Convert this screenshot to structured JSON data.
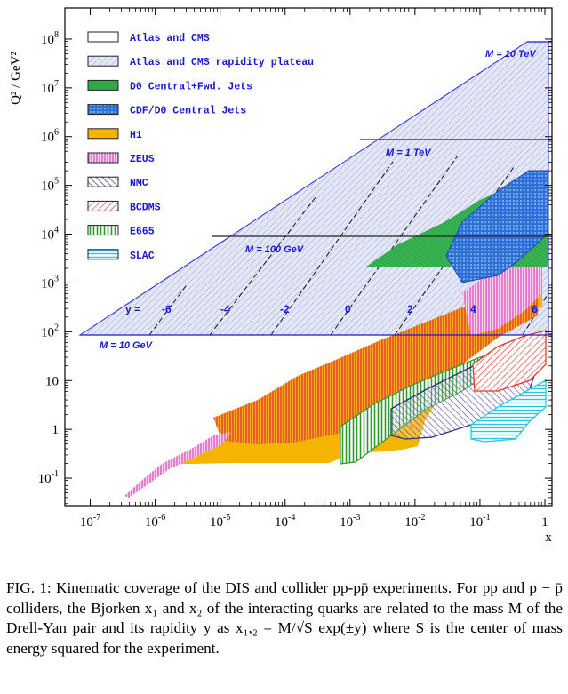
{
  "figure": {
    "y_axis_label": "Q² / GeV²",
    "x_axis_label": "x",
    "x_ticks": [
      {
        "base": "10",
        "exp": "-7",
        "v": -7
      },
      {
        "base": "10",
        "exp": "-6",
        "v": -6
      },
      {
        "base": "10",
        "exp": "-5",
        "v": -5
      },
      {
        "base": "10",
        "exp": "-4",
        "v": -4
      },
      {
        "base": "10",
        "exp": "-3",
        "v": -3
      },
      {
        "base": "10",
        "exp": "-2",
        "v": -2
      },
      {
        "base": "10",
        "exp": "-1",
        "v": -1
      },
      {
        "base": "1",
        "exp": "",
        "v": 0
      }
    ],
    "y_ticks": [
      {
        "base": "10",
        "exp": "8",
        "v": 8
      },
      {
        "base": "10",
        "exp": "7",
        "v": 7
      },
      {
        "base": "10",
        "exp": "6",
        "v": 6
      },
      {
        "base": "10",
        "exp": "5",
        "v": 5
      },
      {
        "base": "10",
        "exp": "4",
        "v": 4
      },
      {
        "base": "10",
        "exp": "3",
        "v": 3
      },
      {
        "base": "10",
        "exp": "2",
        "v": 2
      },
      {
        "base": "10",
        "exp": "",
        "v": 1
      },
      {
        "base": "1",
        "exp": "",
        "v": 0
      },
      {
        "base": "10",
        "exp": "-1",
        "v": -1
      }
    ],
    "legend": [
      {
        "label": "Atlas and CMS",
        "color": "#ffffff",
        "stroke": "#222222",
        "pattern": "none"
      },
      {
        "label": "Atlas and CMS rapidity plateau",
        "color": "#d8dcf0",
        "stroke": "#222222",
        "pattern": "hatch-light"
      },
      {
        "label": "D0 Central+Fwd. Jets",
        "color": "#2ea84a",
        "stroke": "#222222",
        "pattern": "solid"
      },
      {
        "label": "CDF/D0 Central Jets",
        "color": "#2f6fd6",
        "stroke": "#222222",
        "pattern": "dots"
      },
      {
        "label": "H1",
        "color": "#f2b400",
        "stroke": "#222222",
        "pattern": "solid"
      },
      {
        "label": "ZEUS",
        "color": "#e653c4",
        "stroke": "#222222",
        "pattern": "vlines"
      },
      {
        "label": "NMC",
        "color": "#27308a",
        "stroke": "#222222",
        "pattern": "diag"
      },
      {
        "label": "BCDMS",
        "color": "#e23b2a",
        "stroke": "#222222",
        "pattern": "diag2"
      },
      {
        "label": "E665",
        "color": "#2e9a2e",
        "stroke": "#222222",
        "pattern": "vlines"
      },
      {
        "label": "SLAC",
        "color": "#28c8e0",
        "stroke": "#222222",
        "pattern": "hlines"
      }
    ],
    "mass_labels": [
      "M = 10 TeV",
      "M = 1 TeV",
      "M = 100 GeV",
      "M = 10 GeV"
    ],
    "rapidity_labels": {
      "prefix": "y =",
      "values": [
        "-6",
        "-4",
        "-2",
        "0",
        "2",
        "4",
        "6"
      ]
    },
    "colors": {
      "blue": "#1a1ad0",
      "axis": "#000000"
    }
  },
  "caption": "FIG. 1: Kinematic coverage of the DIS and collider pp-pp̄ experiments. For pp and p − p̄ colliders, the Bjorken x₁ and x₂ of the interacting quarks are related to the mass M of the Drell-Yan pair and its rapidity y as x₁,₂ = M/√S exp(±y) where S is the center of mass energy squared for the experiment."
}
